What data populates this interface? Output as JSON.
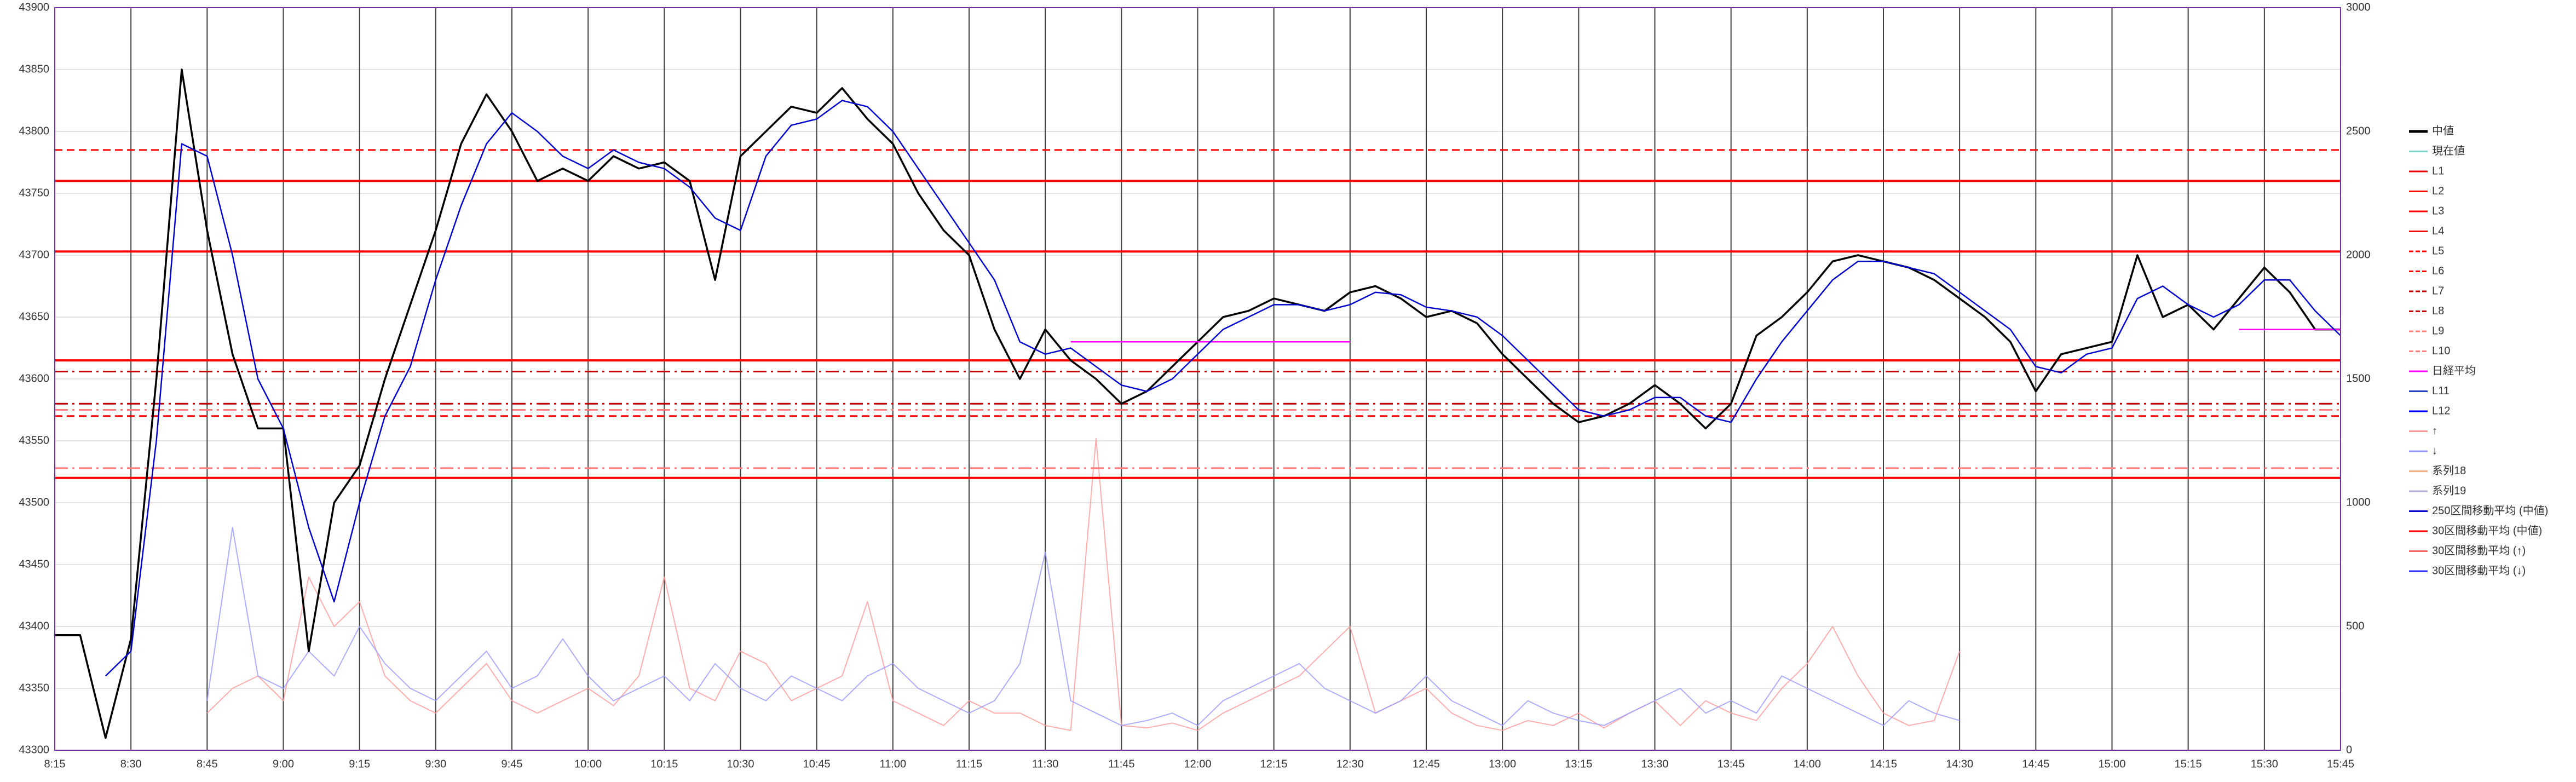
{
  "chart_data": {
    "type": "line",
    "x": [
      495,
      500,
      505,
      510,
      515,
      520,
      525,
      530,
      535,
      540,
      545,
      550,
      555,
      560,
      565,
      570,
      575,
      580,
      585,
      590,
      595,
      600,
      605,
      610,
      615,
      620,
      625,
      630,
      635,
      640,
      645,
      650,
      655,
      660,
      665,
      670,
      675,
      680,
      685,
      690,
      695,
      700,
      705,
      710,
      715,
      720,
      725,
      730,
      735,
      740,
      745,
      750,
      755,
      760,
      765,
      770,
      775,
      780,
      785,
      790,
      795,
      800,
      805,
      810,
      815,
      820,
      825,
      830,
      835,
      840,
      845,
      850,
      855,
      860,
      865,
      870,
      875,
      880,
      885,
      890,
      895,
      900,
      905,
      910,
      915,
      920,
      925,
      930,
      935,
      940,
      945
    ],
    "xlim": [
      495,
      945
    ],
    "xticks": [
      {
        "value": 495,
        "label": "8:15"
      },
      {
        "value": 510,
        "label": "8:30"
      },
      {
        "value": 525,
        "label": "8:45"
      },
      {
        "value": 540,
        "label": "9:00"
      },
      {
        "value": 555,
        "label": "9:15"
      },
      {
        "value": 570,
        "label": "9:30"
      },
      {
        "value": 585,
        "label": "9:45"
      },
      {
        "value": 600,
        "label": "10:00"
      },
      {
        "value": 615,
        "label": "10:15"
      },
      {
        "value": 630,
        "label": "10:30"
      },
      {
        "value": 645,
        "label": "10:45"
      },
      {
        "value": 660,
        "label": "11:00"
      },
      {
        "value": 675,
        "label": "11:15"
      },
      {
        "value": 690,
        "label": "11:30"
      },
      {
        "value": 705,
        "label": "11:45"
      },
      {
        "value": 720,
        "label": "12:00"
      },
      {
        "value": 735,
        "label": "12:15"
      },
      {
        "value": 750,
        "label": "12:30"
      },
      {
        "value": 765,
        "label": "12:45"
      },
      {
        "value": 780,
        "label": "13:00"
      },
      {
        "value": 795,
        "label": "13:15"
      },
      {
        "value": 810,
        "label": "13:30"
      },
      {
        "value": 825,
        "label": "13:45"
      },
      {
        "value": 840,
        "label": "14:00"
      },
      {
        "value": 855,
        "label": "14:15"
      },
      {
        "value": 870,
        "label": "14:30"
      },
      {
        "value": 885,
        "label": "14:45"
      },
      {
        "value": 900,
        "label": "15:00"
      },
      {
        "value": 915,
        "label": "15:15"
      },
      {
        "value": 930,
        "label": "15:30"
      },
      {
        "value": 945,
        "label": "15:45"
      }
    ],
    "ylim": [
      43300,
      43900
    ],
    "yticks": [
      43300,
      43350,
      43400,
      43450,
      43500,
      43550,
      43600,
      43650,
      43700,
      43750,
      43800,
      43850,
      43900
    ],
    "y2lim": [
      0,
      3000
    ],
    "y2ticks": [
      0,
      500,
      1000,
      1500,
      2000,
      2500,
      3000
    ],
    "grid": true,
    "legend": "right",
    "series": [
      {
        "name": "中値",
        "color": "#000000",
        "values": [
          43393,
          43393,
          43310,
          43390,
          43600,
          43850,
          43720,
          43620,
          43560,
          43560,
          43380,
          43500,
          43530,
          43600,
          43660,
          43720,
          43790,
          43830,
          43800,
          43760,
          43770,
          43760,
          43780,
          43770,
          43775,
          43760,
          43680,
          43780,
          43800,
          43820,
          43815,
          43835,
          43810,
          43790,
          43750,
          43720,
          43700,
          43640,
          43600,
          43640,
          43615,
          43600,
          43580,
          43590,
          43610,
          43630,
          43650,
          43655,
          43665,
          43660,
          43655,
          43670,
          43675,
          43665,
          43650,
          43655,
          43645,
          43620,
          43600,
          43580,
          43565,
          43570,
          43580,
          43595,
          43580,
          43560,
          43580,
          43635,
          43650,
          43670,
          43695,
          43700,
          43695,
          43690,
          43680,
          43665,
          43650,
          43630,
          43590,
          43620,
          43625,
          43630,
          43700,
          43650,
          43660,
          43640,
          43665,
          43690,
          43670,
          43640,
          43640
        ]
      },
      {
        "name": "現在値",
        "color": "#7fd3c8"
      },
      {
        "name": "L1",
        "color": "#ff0000",
        "dash": "solid",
        "value": 43760
      },
      {
        "name": "L2",
        "color": "#ff0000",
        "dash": "solid",
        "value": 43703
      },
      {
        "name": "L3",
        "color": "#ff0000",
        "dash": "solid",
        "value": 43615
      },
      {
        "name": "L4",
        "color": "#ff0000",
        "dash": "solid",
        "value": 43520
      },
      {
        "name": "L5",
        "color": "#ff0000",
        "dash": "dash",
        "value": 43785
      },
      {
        "name": "L6",
        "color": "#ff0000",
        "dash": "dash",
        "value": 43570
      },
      {
        "name": "L7",
        "color": "#c00000",
        "dash": "dashdot",
        "value": 43606
      },
      {
        "name": "L8",
        "color": "#c00000",
        "dash": "dashdot",
        "value": 43580
      },
      {
        "name": "L9",
        "color": "#ff7f7f",
        "dash": "dashdot",
        "value": 43575
      },
      {
        "name": "L10",
        "color": "#ff7f7f",
        "dash": "dashdot",
        "value": 43528
      },
      {
        "name": "日経平均",
        "color": "#ff00ff",
        "values": [
          null,
          null,
          null,
          null,
          null,
          null,
          null,
          null,
          null,
          null,
          null,
          null,
          null,
          null,
          null,
          null,
          null,
          null,
          null,
          null,
          null,
          null,
          null,
          null,
          null,
          null,
          null,
          null,
          null,
          null,
          null,
          null,
          null,
          null,
          null,
          null,
          null,
          null,
          null,
          null,
          43630,
          43630,
          43630,
          43630,
          43630,
          43630,
          43630,
          43630,
          43630,
          43630,
          43630,
          43630,
          null,
          null,
          null,
          null,
          null,
          null,
          null,
          null,
          null,
          null,
          null,
          null,
          null,
          null,
          null,
          null,
          null,
          null,
          null,
          null,
          null,
          null,
          null,
          null,
          null,
          null,
          null,
          null,
          null,
          null,
          null,
          null,
          null,
          null,
          43640,
          43640,
          43640,
          43640,
          43640
        ]
      },
      {
        "name": "L11",
        "color": "#1f3fbf"
      },
      {
        "name": "L12",
        "color": "#0000ff"
      },
      {
        "name": "↑",
        "color": "#ff9999",
        "axis": "y2",
        "values": [
          null,
          null,
          null,
          null,
          null,
          null,
          150,
          250,
          300,
          200,
          700,
          500,
          600,
          300,
          200,
          150,
          250,
          350,
          200,
          150,
          200,
          250,
          180,
          300,
          700,
          250,
          200,
          400,
          350,
          200,
          250,
          300,
          600,
          200,
          150,
          100,
          200,
          150,
          150,
          100,
          80,
          1260,
          100,
          90,
          110,
          80,
          150,
          200,
          250,
          300,
          400,
          500,
          150,
          200,
          250,
          150,
          100,
          80,
          120,
          100,
          150,
          90,
          150,
          200,
          100,
          200,
          150,
          120,
          250,
          350,
          500,
          300,
          150,
          100,
          120,
          400,
          null,
          null,
          null,
          null,
          null,
          null,
          null,
          null,
          null,
          null,
          null,
          null,
          null,
          null,
          null
        ]
      },
      {
        "name": "↓",
        "color": "#9999ff",
        "axis": "y2",
        "values": [
          null,
          null,
          null,
          null,
          null,
          null,
          200,
          900,
          300,
          250,
          400,
          300,
          500,
          350,
          250,
          200,
          300,
          400,
          250,
          300,
          450,
          300,
          200,
          250,
          300,
          200,
          350,
          250,
          200,
          300,
          250,
          200,
          300,
          350,
          250,
          200,
          150,
          200,
          350,
          800,
          200,
          150,
          100,
          120,
          150,
          100,
          200,
          250,
          300,
          350,
          250,
          200,
          150,
          200,
          300,
          200,
          150,
          100,
          200,
          150,
          120,
          100,
          150,
          200,
          250,
          150,
          200,
          150,
          300,
          250,
          200,
          150,
          100,
          200,
          150,
          120,
          null,
          null,
          null,
          null,
          null,
          null,
          null,
          null,
          null,
          null,
          null,
          null,
          null,
          null,
          null
        ]
      },
      {
        "name": "系列18",
        "color": "#f4b183"
      },
      {
        "name": "系列19",
        "color": "#b4a7d6"
      },
      {
        "name": "250区間移動平均 (中値)",
        "color": "#0000cc",
        "values": [
          null,
          null,
          43360,
          43380,
          43550,
          43790,
          43780,
          43700,
          43600,
          43560,
          43480,
          43420,
          43500,
          43570,
          43610,
          43680,
          43740,
          43790,
          43815,
          43800,
          43780,
          43770,
          43785,
          43775,
          43770,
          43755,
          43730,
          43720,
          43780,
          43805,
          43810,
          43825,
          43820,
          43800,
          43770,
          43740,
          43710,
          43680,
          43630,
          43620,
          43625,
          43610,
          43595,
          43590,
          43600,
          43620,
          43640,
          43650,
          43660,
          43660,
          43655,
          43660,
          43670,
          43668,
          43658,
          43655,
          43650,
          43635,
          43615,
          43595,
          43575,
          43570,
          43575,
          43585,
          43585,
          43570,
          43565,
          43600,
          43630,
          43655,
          43680,
          43695,
          43695,
          43690,
          43685,
          43670,
          43655,
          43640,
          43610,
          43605,
          43620,
          43625,
          43665,
          43675,
          43660,
          43650,
          43660,
          43680,
          43680,
          43655,
          43635
        ]
      },
      {
        "name": "30区間移動平均 (中値)",
        "color": "#ff0000"
      },
      {
        "name": "30区間移動平均 (↑)",
        "color": "#ff6666"
      },
      {
        "name": "30区間移動平均 (↓)",
        "color": "#3333ff"
      }
    ]
  }
}
